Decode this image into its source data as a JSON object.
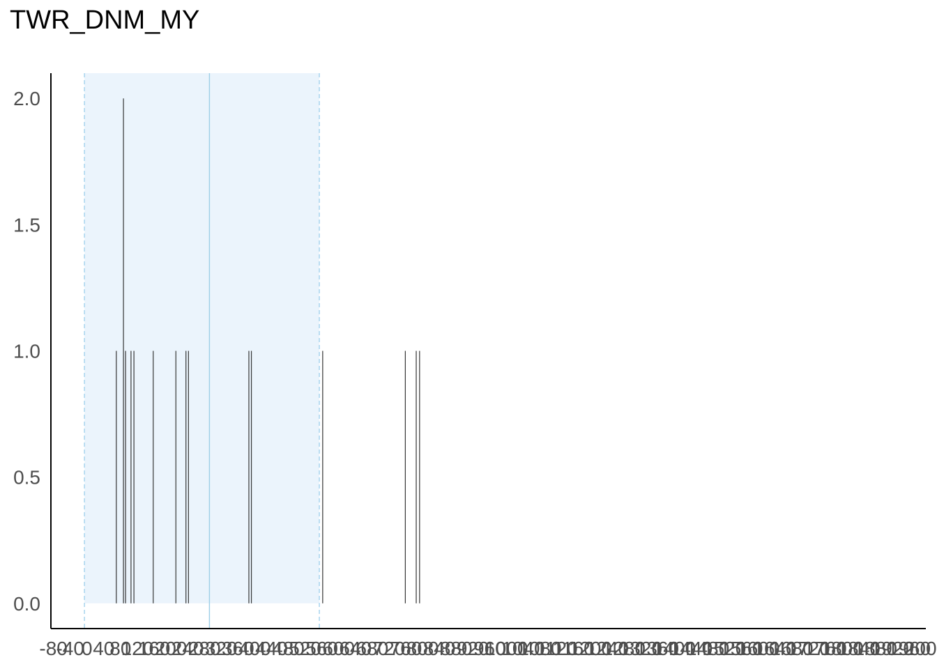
{
  "chart_data": {
    "type": "bar",
    "title": "TWR_DNM_MY",
    "xlabel": "",
    "ylabel": "",
    "xlim": [
      -86,
      2000
    ],
    "ylim": [
      -0.1,
      2.1
    ],
    "y_ticks": [
      0.0,
      0.5,
      1.0,
      1.5,
      2.0
    ],
    "y_tick_labels": [
      "0.0",
      "0.5",
      "1.0",
      "1.5",
      "2.0"
    ],
    "x_ticks": [
      -80,
      -40,
      0,
      40,
      80,
      120,
      160,
      200,
      240,
      280,
      320,
      360,
      400,
      440,
      480,
      520,
      560,
      600,
      640,
      680,
      720,
      760,
      800,
      840,
      880,
      920,
      960,
      1000,
      1040,
      1080,
      1120,
      1160,
      1200,
      1240,
      1280,
      1320,
      1360,
      1400,
      1440,
      1480,
      1520,
      1560,
      1600,
      1640,
      1680,
      1720,
      1760,
      1800,
      1840,
      1880,
      1920,
      1960,
      2000
    ],
    "x_tick_labels": [
      "-80",
      "-40",
      "0",
      "40",
      "80",
      "120",
      "160",
      "200",
      "240",
      "280",
      "320",
      "360",
      "400",
      "440",
      "480",
      "520",
      "560",
      "600",
      "640",
      "680",
      "720",
      "760",
      "800",
      "840",
      "880",
      "920",
      "960",
      "1000",
      "1040",
      "1080",
      "1120",
      "1160",
      "1200",
      "1240",
      "1280",
      "1320",
      "1360",
      "1400",
      "1440",
      "1480",
      "1520",
      "1560",
      "1600",
      "1640",
      "1680",
      "1720",
      "1760",
      "1800",
      "1840",
      "1880",
      "1920",
      "1960",
      "2000"
    ],
    "x": [
      70,
      87,
      92,
      105,
      112,
      158,
      212,
      236,
      242,
      386,
      392,
      562,
      759,
      785,
      793
    ],
    "values": [
      1,
      2,
      1,
      1,
      1,
      1,
      1,
      1,
      1,
      1,
      1,
      1,
      1,
      1,
      1
    ],
    "reference_line": 292,
    "band": [
      -6,
      554
    ],
    "grid": false,
    "colors": {
      "bars": "#333333",
      "band_fill": "#ebf4fc",
      "band_edge": "#a7d4ee",
      "reference_line": "#9fcfe8",
      "axis": "#000000"
    }
  }
}
